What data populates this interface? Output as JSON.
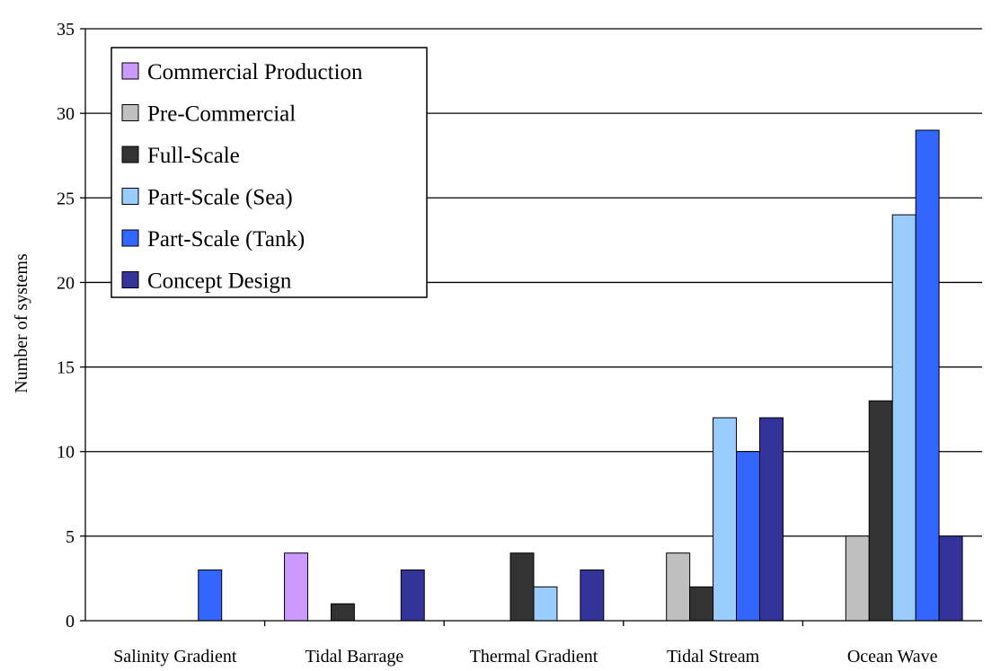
{
  "chart_data": {
    "type": "bar",
    "ylabel": "Number of systems",
    "xlabel": "",
    "ylim": [
      0,
      35
    ],
    "yticks": [
      0,
      5,
      10,
      15,
      20,
      25,
      30,
      35
    ],
    "grid": true,
    "legend_position": "top-left",
    "categories": [
      "Salinity Gradient",
      "Tidal Barrage",
      "Thermal Gradient",
      "Tidal Stream",
      "Ocean Wave"
    ],
    "series": [
      {
        "name": "Commercial Production",
        "color": "#cc99ff",
        "values": [
          0,
          4,
          0,
          0,
          0
        ]
      },
      {
        "name": "Pre-Commercial",
        "color": "#c0c0c0",
        "values": [
          0,
          0,
          0,
          4,
          5
        ]
      },
      {
        "name": "Full-Scale",
        "color": "#333333",
        "values": [
          0,
          1,
          4,
          2,
          13
        ]
      },
      {
        "name": "Part-Scale (Sea)",
        "color": "#99ccff",
        "values": [
          0,
          0,
          2,
          12,
          24
        ]
      },
      {
        "name": "Part-Scale (Tank)",
        "color": "#3366ff",
        "values": [
          3,
          0,
          0,
          10,
          29
        ]
      },
      {
        "name": "Concept Design",
        "color": "#333399",
        "values": [
          0,
          3,
          3,
          12,
          5
        ]
      }
    ]
  }
}
